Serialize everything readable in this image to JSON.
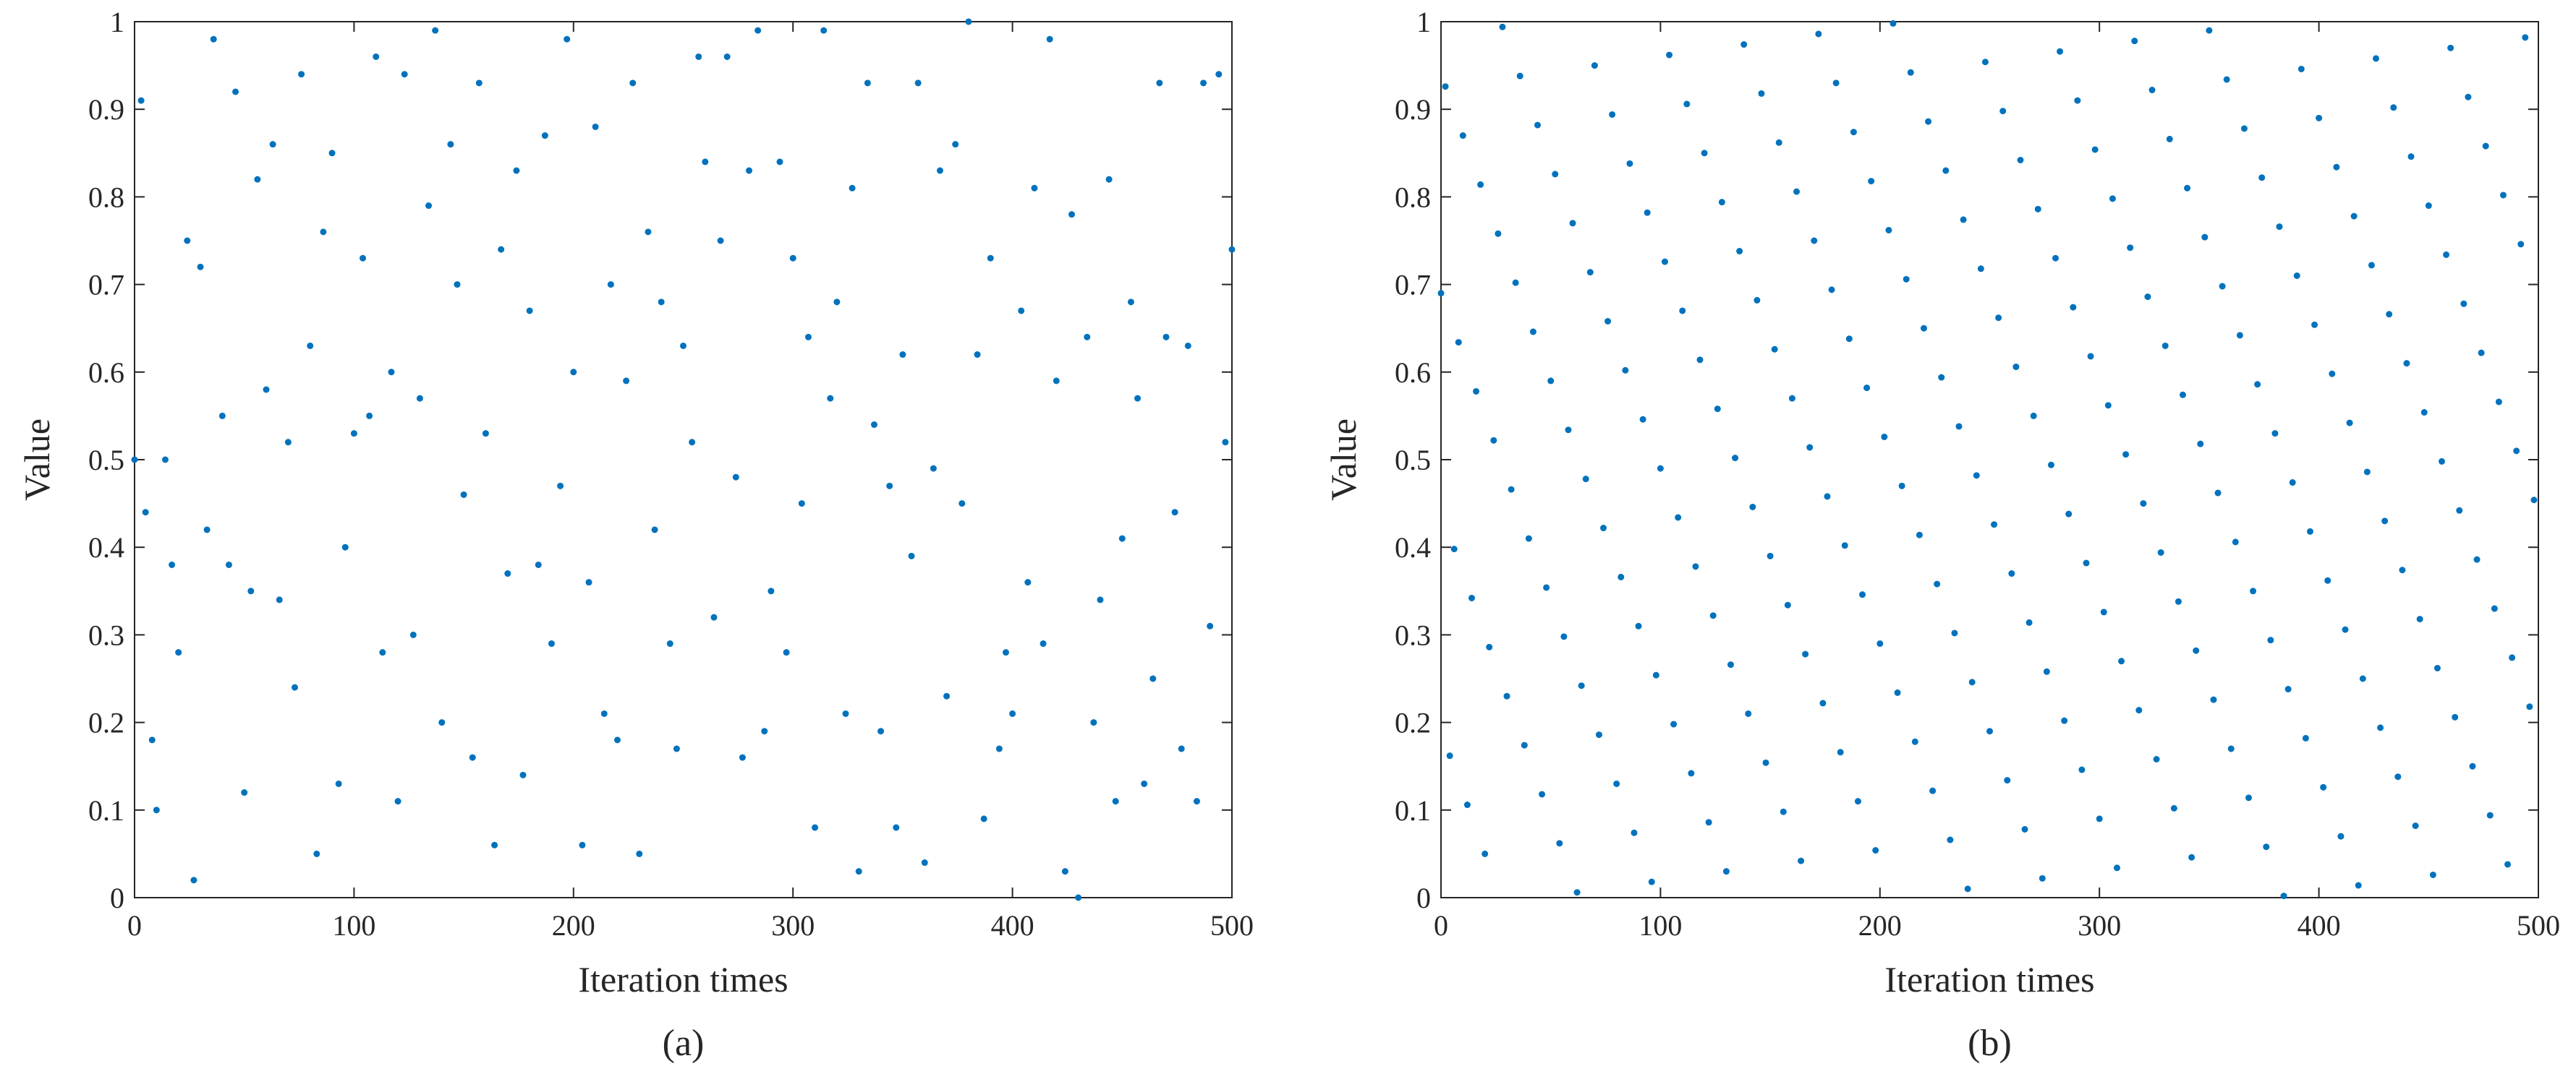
{
  "chart_data": [
    {
      "type": "scatter",
      "x_label": "Iteration times",
      "y_label": "Value",
      "caption": "(a)",
      "color": "#0072bd",
      "xlim": [
        0,
        500
      ],
      "ylim": [
        0,
        1
      ],
      "xticks": [
        0,
        100,
        200,
        300,
        400,
        500
      ],
      "yticks": [
        0,
        0.1,
        0.2,
        0.3,
        0.4,
        0.5,
        0.6,
        0.7,
        0.8,
        0.9,
        1
      ],
      "x": [
        0,
        3,
        5,
        8,
        10,
        14,
        17,
        20,
        24,
        27,
        30,
        33,
        36,
        40,
        43,
        46,
        50,
        53,
        56,
        60,
        63,
        66,
        70,
        73,
        76,
        80,
        83,
        86,
        90,
        93,
        96,
        100,
        104,
        107,
        110,
        113,
        117,
        120,
        123,
        127,
        130,
        134,
        137,
        140,
        144,
        147,
        150,
        154,
        157,
        160,
        164,
        167,
        170,
        174,
        177,
        180,
        184,
        187,
        190,
        194,
        197,
        200,
        204,
        207,
        210,
        214,
        217,
        220,
        224,
        227,
        230,
        234,
        237,
        240,
        244,
        247,
        250,
        254,
        257,
        260,
        264,
        267,
        270,
        274,
        277,
        280,
        284,
        287,
        290,
        294,
        297,
        300,
        304,
        307,
        310,
        314,
        317,
        320,
        324,
        327,
        330,
        334,
        337,
        340,
        344,
        347,
        350,
        354,
        357,
        360,
        364,
        367,
        370,
        374,
        377,
        380,
        384,
        387,
        390,
        394,
        397,
        400,
        404,
        407,
        410,
        414,
        417,
        420,
        424,
        427,
        430,
        434,
        437,
        440,
        444,
        447,
        450,
        454,
        457,
        460,
        464,
        467,
        470,
        474,
        477,
        480,
        484,
        487,
        490,
        494,
        497,
        500
      ],
      "values": [
        0.5,
        0.91,
        0.44,
        0.18,
        0.1,
        0.5,
        0.38,
        0.28,
        0.75,
        0.02,
        0.72,
        0.42,
        0.98,
        0.55,
        0.38,
        0.92,
        0.12,
        0.35,
        0.82,
        0.58,
        0.86,
        0.34,
        0.52,
        0.24,
        0.94,
        0.63,
        0.05,
        0.76,
        0.85,
        0.13,
        0.4,
        0.53,
        0.73,
        0.55,
        0.96,
        0.28,
        0.6,
        0.11,
        0.94,
        0.3,
        0.57,
        0.79,
        0.99,
        0.2,
        0.86,
        0.7,
        0.46,
        0.16,
        0.93,
        0.53,
        0.06,
        0.74,
        0.37,
        0.83,
        0.14,
        0.67,
        0.38,
        0.87,
        0.29,
        0.47,
        0.98,
        0.6,
        0.06,
        0.36,
        0.88,
        0.21,
        0.7,
        0.18,
        0.59,
        0.93,
        0.05,
        0.76,
        0.42,
        0.68,
        0.29,
        0.17,
        0.63,
        0.52,
        0.96,
        0.84,
        0.32,
        0.75,
        0.96,
        0.48,
        0.16,
        0.83,
        0.99,
        0.19,
        0.35,
        0.84,
        0.28,
        0.73,
        0.45,
        0.64,
        0.08,
        0.99,
        0.57,
        0.68,
        0.21,
        0.81,
        0.03,
        0.93,
        0.54,
        0.19,
        0.47,
        0.08,
        0.62,
        0.39,
        0.93,
        0.04,
        0.49,
        0.83,
        0.23,
        0.86,
        0.45,
        1.0,
        0.62,
        0.09,
        0.73,
        0.17,
        0.28,
        0.21,
        0.67,
        0.36,
        0.81,
        0.29,
        0.98,
        0.59,
        0.03,
        0.78,
        0.0,
        0.64,
        0.2,
        0.34,
        0.82,
        0.11,
        0.41,
        0.68,
        0.57,
        0.13,
        0.25,
        0.93,
        0.64,
        0.44,
        0.17,
        0.63,
        0.11,
        0.93,
        0.31,
        0.94,
        0.52,
        0.74
      ]
    },
    {
      "type": "scatter",
      "x_label": "Iteration times",
      "y_label": "Value",
      "caption": "(b)",
      "color": "#0072bd",
      "xlim": [
        0,
        500
      ],
      "ylim": [
        0,
        1
      ],
      "xticks": [
        0,
        100,
        200,
        300,
        400,
        500
      ],
      "yticks": [
        0,
        0.1,
        0.2,
        0.3,
        0.4,
        0.5,
        0.6,
        0.7,
        0.8,
        0.9,
        1
      ],
      "x": [
        0,
        2,
        4,
        6,
        8,
        10,
        12,
        14,
        16,
        18,
        20,
        22,
        24,
        26,
        28,
        30,
        32,
        34,
        36,
        38,
        40,
        42,
        44,
        46,
        48,
        50,
        52,
        54,
        56,
        58,
        60,
        62,
        64,
        66,
        68,
        70,
        72,
        74,
        76,
        78,
        80,
        82,
        84,
        86,
        88,
        90,
        92,
        94,
        96,
        98,
        100,
        102,
        104,
        106,
        108,
        110,
        112,
        114,
        116,
        118,
        120,
        122,
        124,
        126,
        128,
        130,
        132,
        134,
        136,
        138,
        140,
        142,
        144,
        146,
        148,
        150,
        152,
        154,
        156,
        158,
        160,
        162,
        164,
        166,
        168,
        170,
        172,
        174,
        176,
        178,
        180,
        182,
        184,
        186,
        188,
        190,
        192,
        194,
        196,
        198,
        200,
        202,
        204,
        206,
        208,
        210,
        212,
        214,
        216,
        218,
        220,
        222,
        224,
        226,
        228,
        230,
        232,
        234,
        236,
        238,
        240,
        242,
        244,
        246,
        248,
        250,
        252,
        254,
        256,
        258,
        260,
        262,
        264,
        266,
        268,
        270,
        272,
        274,
        276,
        278,
        280,
        282,
        284,
        286,
        288,
        290,
        292,
        294,
        296,
        298,
        300,
        302,
        304,
        306,
        308,
        310,
        312,
        314,
        316,
        318,
        320,
        322,
        324,
        326,
        328,
        330,
        332,
        334,
        336,
        338,
        340,
        342,
        344,
        346,
        348,
        350,
        352,
        354,
        356,
        358,
        360,
        362,
        364,
        366,
        368,
        370,
        372,
        374,
        376,
        378,
        380,
        382,
        384,
        386,
        388,
        390,
        392,
        394,
        396,
        398,
        400,
        402,
        404,
        406,
        408,
        410,
        412,
        414,
        416,
        418,
        420,
        422,
        424,
        426,
        428,
        430,
        432,
        434,
        436,
        438,
        440,
        442,
        444,
        446,
        448,
        450,
        452,
        454,
        456,
        458,
        460,
        462,
        464,
        466,
        468,
        470,
        472,
        474,
        476,
        478,
        480,
        482,
        484,
        486,
        488,
        490,
        492,
        494,
        496,
        498
      ],
      "values": [
        0.69,
        0.926,
        0.162,
        0.398,
        0.634,
        0.87,
        0.106,
        0.342,
        0.578,
        0.814,
        0.05,
        0.286,
        0.522,
        0.758,
        0.994,
        0.23,
        0.466,
        0.702,
        0.938,
        0.174,
        0.41,
        0.646,
        0.882,
        0.118,
        0.354,
        0.59,
        0.826,
        0.062,
        0.298,
        0.534,
        0.77,
        0.006,
        0.242,
        0.478,
        0.714,
        0.95,
        0.186,
        0.422,
        0.658,
        0.894,
        0.13,
        0.366,
        0.602,
        0.838,
        0.074,
        0.31,
        0.546,
        0.782,
        0.018,
        0.254,
        0.49,
        0.726,
        0.962,
        0.198,
        0.434,
        0.67,
        0.906,
        0.142,
        0.378,
        0.614,
        0.85,
        0.086,
        0.322,
        0.558,
        0.794,
        0.03,
        0.266,
        0.502,
        0.738,
        0.974,
        0.21,
        0.446,
        0.682,
        0.918,
        0.154,
        0.39,
        0.626,
        0.862,
        0.098,
        0.334,
        0.57,
        0.806,
        0.042,
        0.278,
        0.514,
        0.75,
        0.986,
        0.222,
        0.458,
        0.694,
        0.93,
        0.166,
        0.402,
        0.638,
        0.874,
        0.11,
        0.346,
        0.582,
        0.818,
        0.054,
        0.29,
        0.526,
        0.762,
        0.998,
        0.234,
        0.47,
        0.706,
        0.942,
        0.178,
        0.414,
        0.65,
        0.886,
        0.122,
        0.358,
        0.594,
        0.83,
        0.066,
        0.302,
        0.538,
        0.774,
        0.01,
        0.246,
        0.482,
        0.718,
        0.954,
        0.19,
        0.426,
        0.662,
        0.898,
        0.134,
        0.37,
        0.606,
        0.842,
        0.078,
        0.314,
        0.55,
        0.786,
        0.022,
        0.258,
        0.494,
        0.73,
        0.966,
        0.202,
        0.438,
        0.674,
        0.91,
        0.146,
        0.382,
        0.618,
        0.854,
        0.09,
        0.326,
        0.562,
        0.798,
        0.034,
        0.27,
        0.506,
        0.742,
        0.978,
        0.214,
        0.45,
        0.686,
        0.922,
        0.158,
        0.394,
        0.63,
        0.866,
        0.102,
        0.338,
        0.574,
        0.81,
        0.046,
        0.282,
        0.518,
        0.754,
        0.99,
        0.226,
        0.462,
        0.698,
        0.934,
        0.17,
        0.406,
        0.642,
        0.878,
        0.114,
        0.35,
        0.586,
        0.822,
        0.058,
        0.294,
        0.53,
        0.766,
        0.002,
        0.238,
        0.474,
        0.71,
        0.946,
        0.182,
        0.418,
        0.654,
        0.89,
        0.126,
        0.362,
        0.598,
        0.834,
        0.07,
        0.306,
        0.542,
        0.778,
        0.014,
        0.25,
        0.486,
        0.722,
        0.958,
        0.194,
        0.43,
        0.666,
        0.902,
        0.138,
        0.374,
        0.61,
        0.846,
        0.082,
        0.318,
        0.554,
        0.79,
        0.026,
        0.262,
        0.498,
        0.734,
        0.97,
        0.206,
        0.442,
        0.678,
        0.914,
        0.15,
        0.386,
        0.622,
        0.858,
        0.094,
        0.33,
        0.566,
        0.802,
        0.038,
        0.274,
        0.51,
        0.746,
        0.982,
        0.218,
        0.454
      ]
    }
  ]
}
